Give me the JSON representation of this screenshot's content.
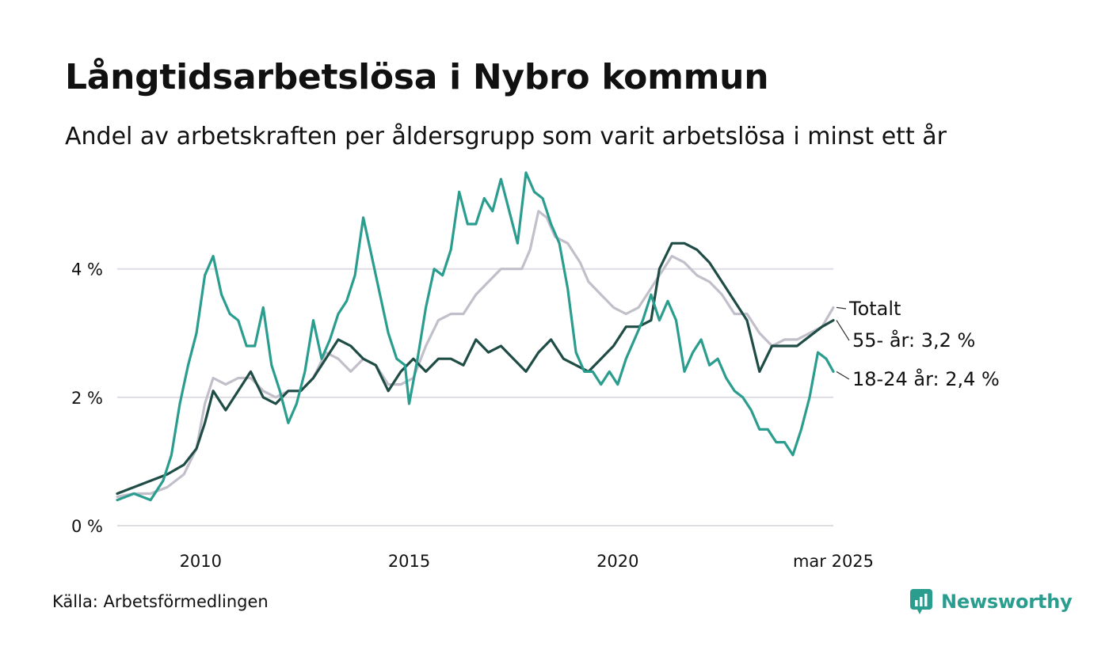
{
  "title": "Långtidsarbetslösa i Nybro kommun",
  "subtitle": "Andel av arbetskraften per åldersgrupp som varit arbetslösa i minst ett år",
  "source": "Källa: Arbetsförmedlingen",
  "brand": {
    "name": "Newsworthy",
    "icon": "newsworthy-logo-icon",
    "color": "#2a9d8f"
  },
  "chart_data": {
    "type": "line",
    "x_start": "2008-01",
    "x_end": "2025-03",
    "xlim": [
      2008.0,
      2025.17
    ],
    "x_ticks": [
      {
        "value": 2010,
        "label": "2010"
      },
      {
        "value": 2015,
        "label": "2015"
      },
      {
        "value": 2020,
        "label": "2020"
      },
      {
        "value": 2025.17,
        "label": "mar 2025"
      }
    ],
    "ylim": [
      0,
      5.6
    ],
    "y_ticks": [
      {
        "value": 0,
        "label": "0 %"
      },
      {
        "value": 2,
        "label": "2 %"
      },
      {
        "value": 4,
        "label": "4 %"
      }
    ],
    "grid": "horizontal",
    "legend": "direct labels at line ends",
    "series": [
      {
        "name": "Totalt",
        "label": "Totalt",
        "color": "#c2bfca",
        "points": [
          [
            2008.0,
            0.45
          ],
          [
            2008.4,
            0.5
          ],
          [
            2008.8,
            0.5
          ],
          [
            2009.2,
            0.6
          ],
          [
            2009.6,
            0.8
          ],
          [
            2009.9,
            1.2
          ],
          [
            2010.1,
            1.9
          ],
          [
            2010.3,
            2.3
          ],
          [
            2010.6,
            2.2
          ],
          [
            2010.9,
            2.3
          ],
          [
            2011.2,
            2.3
          ],
          [
            2011.5,
            2.1
          ],
          [
            2011.8,
            2.0
          ],
          [
            2012.1,
            2.1
          ],
          [
            2012.4,
            2.1
          ],
          [
            2012.7,
            2.3
          ],
          [
            2013.0,
            2.7
          ],
          [
            2013.3,
            2.6
          ],
          [
            2013.6,
            2.4
          ],
          [
            2013.9,
            2.6
          ],
          [
            2014.2,
            2.5
          ],
          [
            2014.5,
            2.2
          ],
          [
            2014.8,
            2.2
          ],
          [
            2015.1,
            2.3
          ],
          [
            2015.4,
            2.8
          ],
          [
            2015.7,
            3.2
          ],
          [
            2016.0,
            3.3
          ],
          [
            2016.3,
            3.3
          ],
          [
            2016.6,
            3.6
          ],
          [
            2016.9,
            3.8
          ],
          [
            2017.2,
            4.0
          ],
          [
            2017.5,
            4.0
          ],
          [
            2017.7,
            4.0
          ],
          [
            2017.9,
            4.3
          ],
          [
            2018.1,
            4.9
          ],
          [
            2018.3,
            4.8
          ],
          [
            2018.5,
            4.5
          ],
          [
            2018.8,
            4.4
          ],
          [
            2019.1,
            4.1
          ],
          [
            2019.3,
            3.8
          ],
          [
            2019.6,
            3.6
          ],
          [
            2019.9,
            3.4
          ],
          [
            2020.2,
            3.3
          ],
          [
            2020.5,
            3.4
          ],
          [
            2020.7,
            3.6
          ],
          [
            2021.0,
            3.9
          ],
          [
            2021.3,
            4.2
          ],
          [
            2021.6,
            4.1
          ],
          [
            2021.9,
            3.9
          ],
          [
            2022.2,
            3.8
          ],
          [
            2022.5,
            3.6
          ],
          [
            2022.8,
            3.3
          ],
          [
            2023.1,
            3.3
          ],
          [
            2023.4,
            3.0
          ],
          [
            2023.7,
            2.8
          ],
          [
            2024.0,
            2.9
          ],
          [
            2024.3,
            2.9
          ],
          [
            2024.6,
            3.0
          ],
          [
            2024.9,
            3.1
          ],
          [
            2025.17,
            3.4
          ]
        ]
      },
      {
        "name": "55- år",
        "label": "55- år: 3,2 %",
        "color": "#1f4d46",
        "points": [
          [
            2008.0,
            0.5
          ],
          [
            2008.4,
            0.6
          ],
          [
            2008.8,
            0.7
          ],
          [
            2009.2,
            0.8
          ],
          [
            2009.6,
            0.95
          ],
          [
            2009.9,
            1.2
          ],
          [
            2010.1,
            1.6
          ],
          [
            2010.3,
            2.1
          ],
          [
            2010.6,
            1.8
          ],
          [
            2010.9,
            2.1
          ],
          [
            2011.2,
            2.4
          ],
          [
            2011.5,
            2.0
          ],
          [
            2011.8,
            1.9
          ],
          [
            2012.1,
            2.1
          ],
          [
            2012.4,
            2.1
          ],
          [
            2012.7,
            2.3
          ],
          [
            2013.0,
            2.6
          ],
          [
            2013.3,
            2.9
          ],
          [
            2013.6,
            2.8
          ],
          [
            2013.9,
            2.6
          ],
          [
            2014.2,
            2.5
          ],
          [
            2014.5,
            2.1
          ],
          [
            2014.8,
            2.4
          ],
          [
            2015.1,
            2.6
          ],
          [
            2015.4,
            2.4
          ],
          [
            2015.7,
            2.6
          ],
          [
            2016.0,
            2.6
          ],
          [
            2016.3,
            2.5
          ],
          [
            2016.6,
            2.9
          ],
          [
            2016.9,
            2.7
          ],
          [
            2017.2,
            2.8
          ],
          [
            2017.5,
            2.6
          ],
          [
            2017.8,
            2.4
          ],
          [
            2018.1,
            2.7
          ],
          [
            2018.4,
            2.9
          ],
          [
            2018.7,
            2.6
          ],
          [
            2019.0,
            2.5
          ],
          [
            2019.3,
            2.4
          ],
          [
            2019.6,
            2.6
          ],
          [
            2019.9,
            2.8
          ],
          [
            2020.2,
            3.1
          ],
          [
            2020.5,
            3.1
          ],
          [
            2020.8,
            3.2
          ],
          [
            2021.0,
            4.0
          ],
          [
            2021.3,
            4.4
          ],
          [
            2021.6,
            4.4
          ],
          [
            2021.9,
            4.3
          ],
          [
            2022.2,
            4.1
          ],
          [
            2022.5,
            3.8
          ],
          [
            2022.8,
            3.5
          ],
          [
            2023.1,
            3.2
          ],
          [
            2023.4,
            2.4
          ],
          [
            2023.7,
            2.8
          ],
          [
            2024.0,
            2.8
          ],
          [
            2024.3,
            2.8
          ],
          [
            2024.6,
            2.95
          ],
          [
            2024.9,
            3.1
          ],
          [
            2025.17,
            3.2
          ]
        ]
      },
      {
        "name": "18-24 år",
        "label": "18-24 år: 2,4 %",
        "color": "#2a9d8f",
        "points": [
          [
            2008.0,
            0.4
          ],
          [
            2008.4,
            0.5
          ],
          [
            2008.8,
            0.4
          ],
          [
            2009.1,
            0.7
          ],
          [
            2009.3,
            1.1
          ],
          [
            2009.5,
            1.9
          ],
          [
            2009.7,
            2.5
          ],
          [
            2009.9,
            3.0
          ],
          [
            2010.1,
            3.9
          ],
          [
            2010.3,
            4.2
          ],
          [
            2010.5,
            3.6
          ],
          [
            2010.7,
            3.3
          ],
          [
            2010.9,
            3.2
          ],
          [
            2011.1,
            2.8
          ],
          [
            2011.3,
            2.8
          ],
          [
            2011.5,
            3.4
          ],
          [
            2011.7,
            2.5
          ],
          [
            2011.9,
            2.1
          ],
          [
            2012.1,
            1.6
          ],
          [
            2012.3,
            1.9
          ],
          [
            2012.5,
            2.4
          ],
          [
            2012.7,
            3.2
          ],
          [
            2012.9,
            2.6
          ],
          [
            2013.1,
            2.9
          ],
          [
            2013.3,
            3.3
          ],
          [
            2013.5,
            3.5
          ],
          [
            2013.7,
            3.9
          ],
          [
            2013.9,
            4.8
          ],
          [
            2014.1,
            4.2
          ],
          [
            2014.3,
            3.6
          ],
          [
            2014.5,
            3.0
          ],
          [
            2014.7,
            2.6
          ],
          [
            2014.9,
            2.5
          ],
          [
            2015.0,
            1.9
          ],
          [
            2015.2,
            2.6
          ],
          [
            2015.4,
            3.4
          ],
          [
            2015.6,
            4.0
          ],
          [
            2015.8,
            3.9
          ],
          [
            2016.0,
            4.3
          ],
          [
            2016.2,
            5.2
          ],
          [
            2016.4,
            4.7
          ],
          [
            2016.6,
            4.7
          ],
          [
            2016.8,
            5.1
          ],
          [
            2017.0,
            4.9
          ],
          [
            2017.2,
            5.4
          ],
          [
            2017.4,
            4.9
          ],
          [
            2017.6,
            4.4
          ],
          [
            2017.8,
            5.5
          ],
          [
            2018.0,
            5.2
          ],
          [
            2018.2,
            5.1
          ],
          [
            2018.4,
            4.7
          ],
          [
            2018.6,
            4.4
          ],
          [
            2018.8,
            3.7
          ],
          [
            2019.0,
            2.7
          ],
          [
            2019.2,
            2.4
          ],
          [
            2019.4,
            2.4
          ],
          [
            2019.6,
            2.2
          ],
          [
            2019.8,
            2.4
          ],
          [
            2020.0,
            2.2
          ],
          [
            2020.2,
            2.6
          ],
          [
            2020.4,
            2.9
          ],
          [
            2020.6,
            3.2
          ],
          [
            2020.8,
            3.6
          ],
          [
            2021.0,
            3.2
          ],
          [
            2021.2,
            3.5
          ],
          [
            2021.4,
            3.2
          ],
          [
            2021.6,
            2.4
          ],
          [
            2021.8,
            2.7
          ],
          [
            2022.0,
            2.9
          ],
          [
            2022.2,
            2.5
          ],
          [
            2022.4,
            2.6
          ],
          [
            2022.6,
            2.3
          ],
          [
            2022.8,
            2.1
          ],
          [
            2023.0,
            2.0
          ],
          [
            2023.2,
            1.8
          ],
          [
            2023.4,
            1.5
          ],
          [
            2023.6,
            1.5
          ],
          [
            2023.8,
            1.3
          ],
          [
            2024.0,
            1.3
          ],
          [
            2024.2,
            1.1
          ],
          [
            2024.4,
            1.5
          ],
          [
            2024.6,
            2.0
          ],
          [
            2024.8,
            2.7
          ],
          [
            2025.0,
            2.6
          ],
          [
            2025.17,
            2.4
          ]
        ]
      }
    ]
  }
}
